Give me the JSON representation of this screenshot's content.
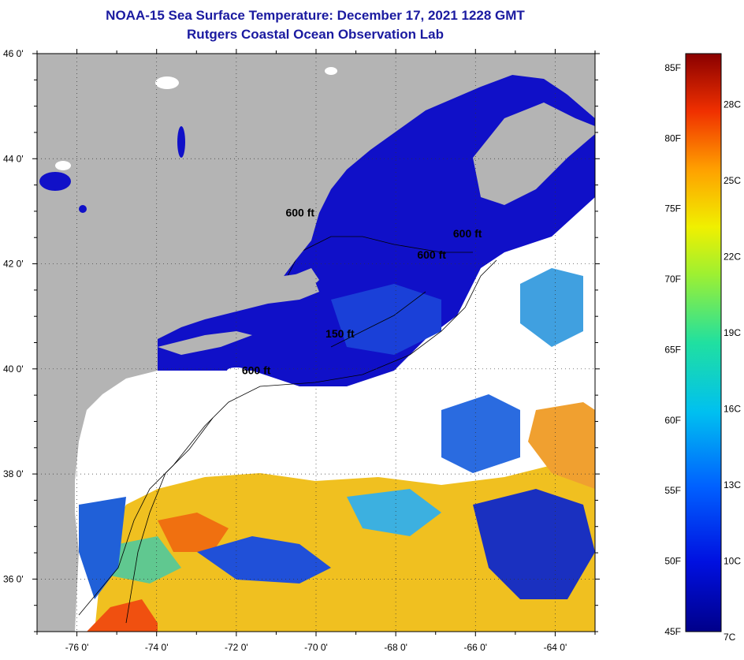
{
  "header": {
    "title": "NOAA-15 Sea Surface Temperature:  December 17, 2021 1228 GMT",
    "subtitle": "Rutgers Coastal Ocean Observation Lab"
  },
  "map": {
    "lat_ticks": [
      "46 0'",
      "44 0'",
      "42 0'",
      "40 0'",
      "38 0'",
      "36 0'"
    ],
    "lat_values": [
      46,
      44,
      42,
      40,
      38,
      36
    ],
    "lon_ticks": [
      "-76 0'",
      "-74 0'",
      "-72 0'",
      "-70 0'",
      "-68 0'",
      "-66 0'",
      "-64 0'"
    ],
    "lon_values": [
      -76,
      -74,
      -72,
      -70,
      -68,
      -66,
      -64
    ],
    "lat_range": [
      35,
      46
    ],
    "lon_range": [
      -77,
      -63
    ],
    "contour_labels": [
      {
        "text": "600 ft",
        "lon": -70.4,
        "lat": 42.9
      },
      {
        "text": "600 ft",
        "lon": -66.2,
        "lat": 42.5
      },
      {
        "text": "600 ft",
        "lon": -67.1,
        "lat": 42.1
      },
      {
        "text": "150 ft",
        "lon": -69.4,
        "lat": 40.6
      },
      {
        "text": "600 ft",
        "lon": -71.5,
        "lat": 39.9
      }
    ],
    "colors": {
      "land": "#b4b4b4",
      "cloud": "#ffffff",
      "cold": "#1010c8",
      "mid": "#2a6be0",
      "warm": "#f0c020",
      "hot": "#f06010"
    }
  },
  "colorbar": {
    "fahrenheit_labels": [
      "85F",
      "80F",
      "75F",
      "70F",
      "65F",
      "60F",
      "55F",
      "50F",
      "45F"
    ],
    "fahrenheit_values": [
      85,
      80,
      75,
      70,
      65,
      60,
      55,
      50,
      45
    ],
    "celsius_labels": [
      "28C",
      "25C",
      "22C",
      "19C",
      "16C",
      "13C",
      "10C",
      "7C"
    ],
    "celsius_values": [
      28,
      25,
      22,
      19,
      16,
      13,
      10,
      7
    ],
    "range_f": [
      45,
      86
    ]
  }
}
